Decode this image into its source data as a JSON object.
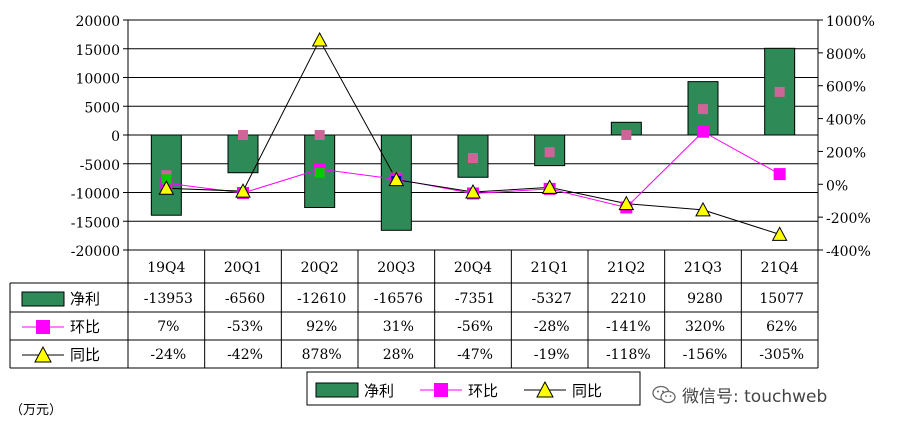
{
  "chart_data": {
    "type": "bar+line",
    "categories": [
      "19Q4",
      "20Q1",
      "20Q2",
      "20Q3",
      "20Q4",
      "21Q1",
      "21Q2",
      "21Q3",
      "21Q4"
    ],
    "left_axis": {
      "min": -20000,
      "max": 20000,
      "step": 5000,
      "ticks": [
        "20000",
        "15000",
        "10000",
        "5000",
        "0",
        "-5000",
        "-10000",
        "-15000",
        "-20000"
      ]
    },
    "right_axis": {
      "min": -400,
      "max": 1000,
      "step": 200,
      "ticks": [
        "1000%",
        "800%",
        "600%",
        "400%",
        "200%",
        "0%",
        "-200%",
        "-400%"
      ]
    },
    "series": [
      {
        "name": "净利",
        "type": "bar",
        "axis": "left",
        "color": "#2e8b57",
        "values": [
          -13953,
          -6560,
          -12610,
          -16576,
          -7351,
          -5327,
          2210,
          9280,
          15077
        ],
        "labels": [
          "-13953",
          "-6560",
          "-12610",
          "-16576",
          "-7351",
          "-5327",
          "2210",
          "9280",
          "15077"
        ]
      },
      {
        "name": "环比",
        "type": "line",
        "axis": "right",
        "color": "#ff00ff",
        "values": [
          7,
          -53,
          92,
          31,
          -56,
          -28,
          -141,
          320,
          62
        ],
        "labels": [
          "7%",
          "-53%",
          "92%",
          "31%",
          "-56%",
          "-28%",
          "-141%",
          "320%",
          "62%"
        ]
      },
      {
        "name": "同比",
        "type": "line",
        "axis": "right",
        "color": "#000000",
        "marker_color": "#ffff00",
        "values": [
          -24,
          -42,
          878,
          28,
          -47,
          -19,
          -118,
          -156,
          -305
        ],
        "labels": [
          "-24%",
          "-42%",
          "878%",
          "28%",
          "-47%",
          "-19%",
          "-118%",
          "-156%",
          "-305%"
        ]
      }
    ],
    "overlay_markers": [
      {
        "description": "pink squares",
        "color": "#cc6699",
        "values": [
          -7000,
          0,
          0,
          -7400,
          -4000,
          -3000,
          0,
          4500,
          7500
        ]
      },
      {
        "description": "stray markers",
        "items": [
          {
            "category": "19Q4",
            "color": "#00cc00",
            "value_right": 30
          },
          {
            "category": "20Q2",
            "color": "#00cc00",
            "value_right": 70
          },
          {
            "category": "20Q3",
            "color": "#0000cc",
            "value_right": 20
          }
        ]
      }
    ],
    "legend": {
      "position": "bottom-center",
      "items": [
        "净利",
        "环比",
        "同比"
      ]
    },
    "unit_label": "（万元）"
  },
  "watermark": "微信号: touchweb",
  "colors": {
    "bar": "#2e8b57",
    "mom": "#ff00ff",
    "yoy_line": "#000000",
    "yoy_marker": "#ffff00",
    "pink_marker": "#cc6699"
  }
}
